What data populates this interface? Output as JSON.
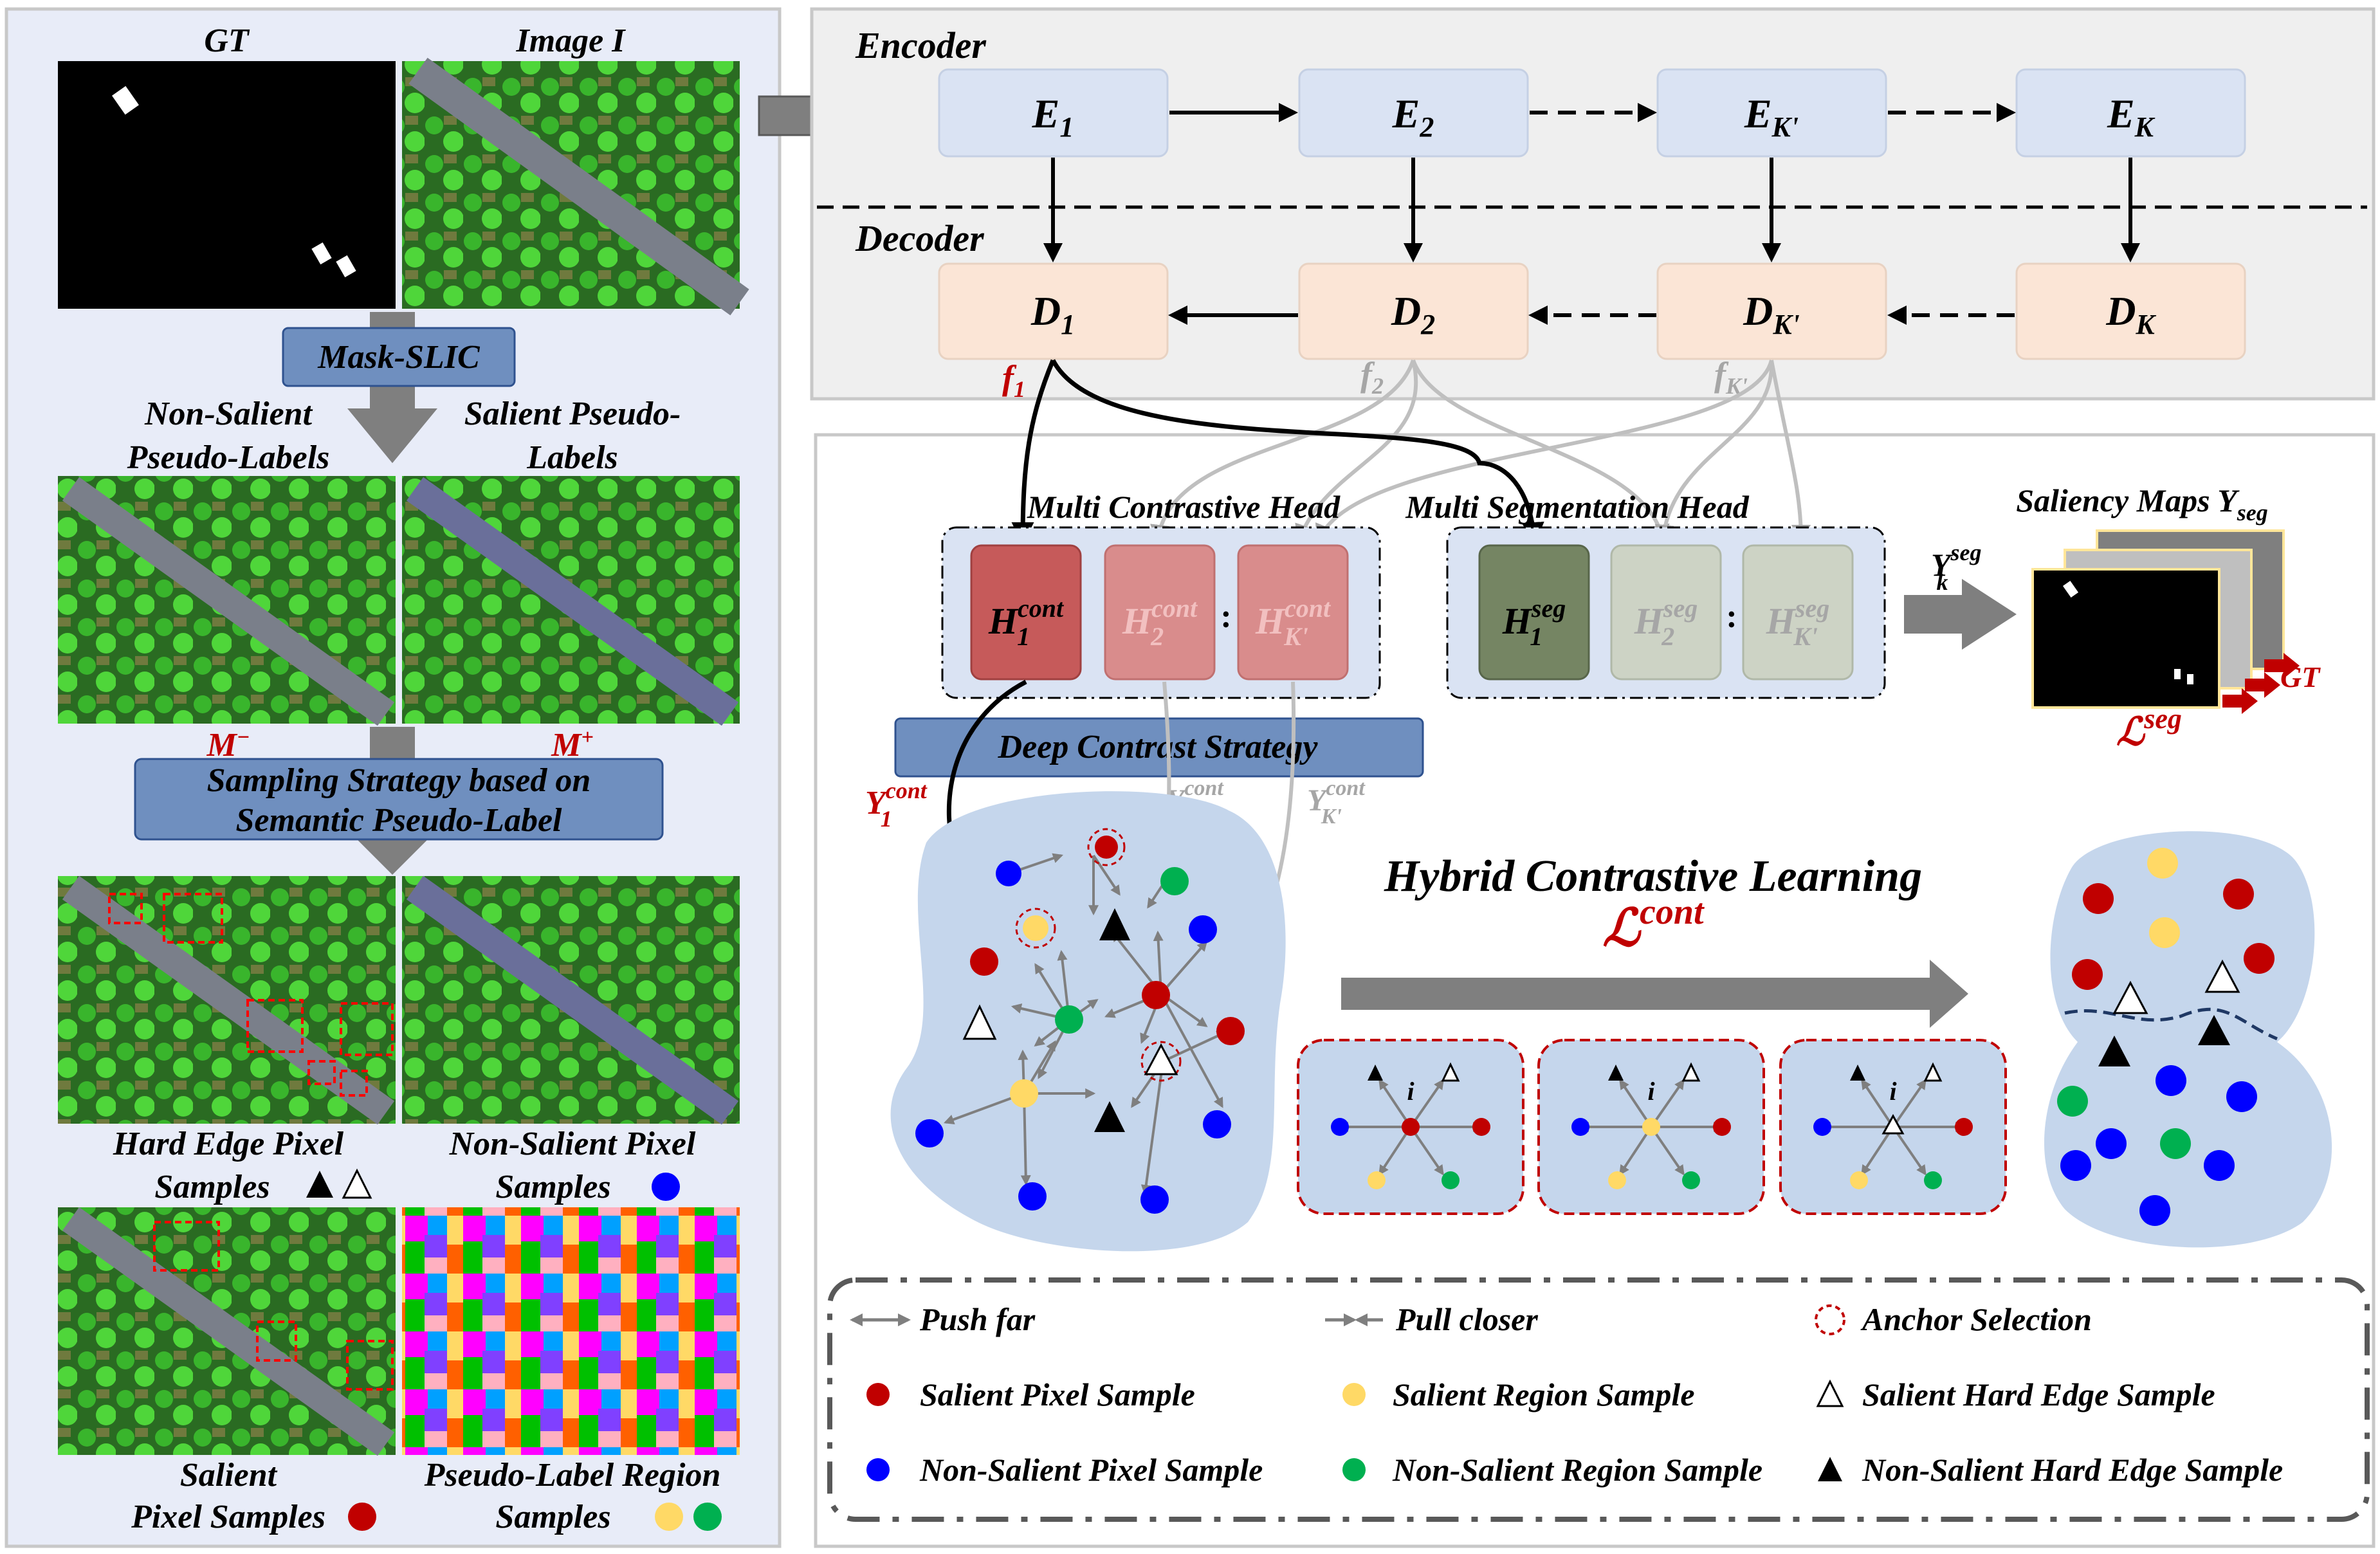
{
  "left_panel": {
    "gt_label": "GT",
    "image_label": "Image I",
    "mask_slic": "Mask-SLIC",
    "non_salient_pl": [
      "Non-Salient",
      "Pseudo-Labels"
    ],
    "salient_pl": [
      "Salient Pseudo-",
      "Labels"
    ],
    "m_minus": "M",
    "m_plus": "M",
    "sampling": [
      "Sampling Strategy based on",
      "Semantic Pseudo-Label"
    ],
    "hard_edge": [
      "Hard Edge Pixel",
      "Samples"
    ],
    "non_salient_pix": [
      "Non-Salient Pixel",
      "Samples"
    ],
    "salient_pix": [
      "Salient",
      "Pixel Samples"
    ],
    "pseudo_region": [
      "Pseudo-Label Region",
      "Samples"
    ]
  },
  "encoder": {
    "title": "Encoder",
    "blocks": [
      "E",
      "E",
      "E",
      "E"
    ],
    "subs": [
      "1",
      "2",
      "K'",
      "K"
    ]
  },
  "decoder": {
    "title": "Decoder",
    "blocks": [
      "D",
      "D",
      "D",
      "D"
    ],
    "subs": [
      "1",
      "2",
      "K'",
      "K"
    ]
  },
  "features": {
    "f": "f",
    "subs": [
      "1",
      "2",
      "K'"
    ]
  },
  "contrastive_head": {
    "title": "Multi Contrastive Head",
    "heads": [
      "H",
      "H",
      "H"
    ],
    "sup": "cont",
    "subs": [
      "1",
      "2",
      "K'"
    ]
  },
  "segmentation_head": {
    "title": "Multi Segmentation Head",
    "heads": [
      "H",
      "H",
      "H"
    ],
    "sup": "seg",
    "subs": [
      "1",
      "2",
      "K'"
    ]
  },
  "saliency": {
    "title": "Saliency Maps Y",
    "title_sub": "seg",
    "y_label": "Y",
    "y_sup": "seg",
    "y_sub": "k",
    "gt": "GT",
    "loss": "ℒ",
    "loss_sup": "seg"
  },
  "deep_contrast": "Deep Contrast Strategy",
  "y_cont": {
    "y": "Y",
    "sup": "cont",
    "subs": [
      "1",
      "2",
      "K'"
    ]
  },
  "hybrid": {
    "title": "Hybrid Contrastive Learning",
    "loss": "ℒ",
    "loss_sup": "cont"
  },
  "anchor_label": "i",
  "legend": {
    "push": "Push far",
    "pull": "Pull closer",
    "anchor": "Anchor Selection",
    "salient_pixel": "Salient Pixel Sample",
    "salient_region": "Salient Region Sample",
    "salient_edge": "Salient Hard Edge Sample",
    "non_salient_pixel": "Non-Salient Pixel Sample",
    "non_salient_region": "Non-Salient Region Sample",
    "non_salient_edge": "Non-Salient Hard Edge Sample"
  },
  "colors": {
    "red": "#c00000",
    "blue": "#0000ff",
    "yellow": "#ffd966",
    "green": "#00b050",
    "encoder_fill": "#dae3f3",
    "decoder_fill": "#fbe5d6",
    "cloud": "#c5d6ec"
  }
}
